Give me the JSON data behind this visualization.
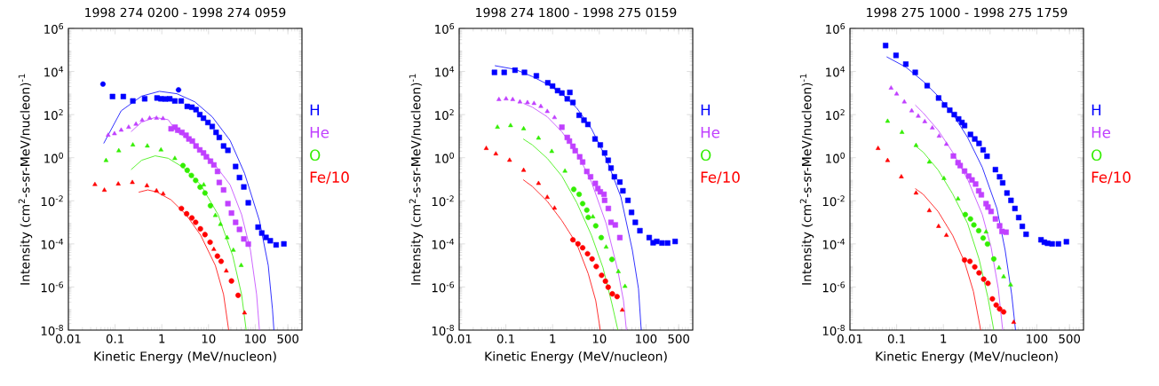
{
  "chart_data": [
    {
      "type": "scatter",
      "title": "1998 274 0200 - 1998 274 0959",
      "xlabel": "Kinetic Energy (MeV/nucleon)",
      "ylabel": "Intensity (cm$^{2}$-s-sr-MeV/nucleon)$^{-1}$",
      "log": "xy",
      "legend": "right",
      "xlim": [
        0.01,
        1000
      ],
      "ylim": [
        1e-08,
        1000000.0
      ],
      "xticks": [
        0.01,
        0.1,
        1,
        10,
        100,
        500
      ],
      "yticks": [
        {
          "value": 1e-08,
          "label": "10$^{-8}$"
        },
        {
          "value": 1e-06,
          "label": "10$^{-6}$"
        },
        {
          "value": 0.0001,
          "label": "10$^{-4}$"
        },
        {
          "value": 0.01,
          "label": "10$^{-2}$"
        },
        {
          "value": 1,
          "label": "10$^{0}$"
        },
        {
          "value": 100,
          "label": "10$^{2}$"
        },
        {
          "value": 10000.0,
          "label": "10$^{4}$"
        },
        {
          "value": 1000000.0,
          "label": "10$^{6}$"
        }
      ],
      "series": [
        {
          "name": "H",
          "marker": "square",
          "color": "#0000ff",
          "x": [
            0.088,
            0.15,
            0.24,
            0.43,
            0.79,
            0.96,
            1.19,
            1.48,
            1.9,
            2.6,
            3.5,
            4.4,
            5.4,
            6.5,
            7.8,
            9.7,
            12,
            14.5,
            17,
            21,
            26,
            38,
            46,
            57,
            71,
            115,
            138,
            170,
            210,
            280,
            410
          ],
          "values": [
            690,
            690,
            430,
            540,
            590,
            540,
            530,
            540,
            430,
            430,
            240,
            220,
            170,
            100,
            68,
            43,
            28,
            15,
            8.7,
            3.5,
            2.2,
            0.39,
            0.12,
            0.044,
            0.0081,
            0.0006,
            0.00032,
            0.0002,
            0.00014,
            9e-05,
            0.0001
          ]
        },
        {
          "marker": "circle",
          "color": "#0000ff",
          "x": [
            0.055,
            2.28
          ],
          "values": [
            2600,
            1400
          ]
        },
        {
          "type": "line",
          "color": "#0000ff",
          "x": [
            0.057,
            0.135,
            0.37,
            0.89,
            2.1,
            5.1,
            12,
            29,
            59,
            123,
            190,
            234,
            251
          ],
          "values": [
            4.6,
            150,
            720,
            1200,
            930,
            390,
            79,
            6.3,
            0.19,
            0.0012,
            1e-05,
            9.1e-08,
            1e-08
          ]
        },
        {
          "name": "He",
          "marker": "triangle",
          "color": "#c040ff",
          "x": [
            0.071,
            0.097,
            0.135,
            0.195,
            0.28,
            0.38,
            0.55,
            0.77,
            1.06
          ],
          "values": [
            11,
            13,
            19,
            26,
            36,
            55,
            68,
            68,
            66
          ]
        },
        {
          "marker": "square",
          "color": "#c040ff",
          "x": [
            1.58,
            1.92,
            2.19,
            2.7,
            3.3,
            3.8,
            4.5,
            5.4,
            6.5,
            7.8,
            9.0,
            11,
            13,
            15.6,
            17,
            21,
            26,
            31,
            38,
            46,
            57,
            71
          ],
          "values": [
            22,
            26,
            19,
            15,
            11,
            7.4,
            5.9,
            3.5,
            2.3,
            1.66,
            1.1,
            0.69,
            0.46,
            0.23,
            0.071,
            0.032,
            0.0074,
            0.0027,
            0.001,
            0.00047,
            0.00017,
            9.8e-05
          ]
        },
        {
          "type": "line",
          "color": "#c040ff",
          "x": [
            0.22,
            0.37,
            0.72,
            1.37,
            2.1,
            5.1,
            12,
            29,
            51,
            79,
            107,
            123
          ],
          "values": [
            16,
            45,
            74,
            58,
            16,
            4.6,
            0.69,
            0.055,
            0.0023,
            5.1e-05,
            4.5e-07,
            1e-08
          ]
        },
        {
          "name": "O",
          "marker": "triangle",
          "color": "#33ee00",
          "x": [
            0.064,
            0.12,
            0.24,
            0.49,
            0.96,
            1.9,
            7.9,
            14,
            18,
            25,
            34,
            50
          ],
          "values": [
            0.74,
            2.1,
            3.9,
            3.5,
            2.3,
            0.93,
            0.055,
            0.0021,
            0.00081,
            0.000196,
            5.1e-05,
            1e-05
          ]
        },
        {
          "marker": "circle",
          "color": "#33ee00",
          "x": [
            2.84,
            3.5,
            4.3,
            5.3,
            6.6,
            8.4,
            11
          ],
          "values": [
            0.43,
            0.26,
            0.15,
            0.088,
            0.043,
            0.023,
            0.0059
          ]
        },
        {
          "type": "line",
          "color": "#33ee00",
          "x": [
            0.22,
            0.37,
            0.72,
            1.37,
            2.84,
            6.8,
            16,
            33,
            51,
            64
          ],
          "values": [
            0.28,
            0.76,
            1.22,
            0.94,
            0.36,
            0.055,
            0.0023,
            2.8e-05,
            4.5e-07,
            1e-08
          ]
        },
        {
          "name": "Fe/10",
          "marker": "triangle",
          "color": "#ff0000",
          "x": [
            0.037,
            0.059,
            0.117,
            0.234,
            0.48,
            0.77,
            1.07,
            13,
            24,
            59
          ],
          "values": [
            0.057,
            0.031,
            0.06,
            0.071,
            0.05,
            0.029,
            0.021,
            5.6e-05,
            5.6e-06,
            6.3e-08
          ]
        },
        {
          "marker": "circle",
          "color": "#ff0000",
          "x": [
            2.63,
            3.4,
            4.4,
            5.3,
            6.7,
            8.4,
            10.8,
            15.5,
            18.6,
            31,
            43
          ],
          "values": [
            0.0044,
            0.0025,
            0.0016,
            0.001,
            0.0005,
            0.00027,
            0.00012,
            2.7e-05,
            1.55e-05,
            1.9e-06,
            4.1e-07
          ]
        },
        {
          "type": "line",
          "color": "#ff0000",
          "x": [
            0.32,
            0.5,
            0.77,
            1.58,
            3.3,
            6.8,
            14,
            21,
            27
          ],
          "values": [
            0.025,
            0.032,
            0.026,
            0.011,
            0.0023,
            0.00025,
            1e-05,
            4.5e-07,
            1e-08
          ]
        }
      ]
    },
    {
      "type": "scatter",
      "title": "1998 274 1800 - 1998 275 0159",
      "xlabel": "Kinetic Energy (MeV/nucleon)",
      "ylabel": "Intensity (cm$^{2}$-s-sr-MeV/nucleon)$^{-1}$",
      "log": "xy",
      "legend": "right",
      "xlim": [
        0.01,
        1000
      ],
      "ylim": [
        1e-08,
        1000000.0
      ],
      "xticks": [
        0.01,
        0.1,
        1,
        10,
        100,
        500
      ],
      "yticks": [
        {
          "value": 1e-08,
          "label": "10$^{-8}$"
        },
        {
          "value": 1e-06,
          "label": "10$^{-6}$"
        },
        {
          "value": 0.0001,
          "label": "10$^{-4}$"
        },
        {
          "value": 0.01,
          "label": "10$^{-2}$"
        },
        {
          "value": 1,
          "label": "10$^{0}$"
        },
        {
          "value": 100,
          "label": "10$^{2}$"
        },
        {
          "value": 10000.0,
          "label": "10$^{4}$"
        },
        {
          "value": 1000000.0,
          "label": "10$^{6}$"
        }
      ],
      "series": [
        {
          "name": "H",
          "marker": "square",
          "color": "#0000ff",
          "x": [
            0.057,
            0.092,
            0.157,
            0.25,
            0.45,
            0.79,
            1.0,
            1.28,
            1.58,
            2.06,
            2.34,
            2.72,
            3.7,
            4.7,
            5.7,
            8.1,
            10.5,
            13,
            15.5,
            17.8,
            21,
            27.5,
            32,
            41,
            49,
            59,
            74,
            117,
            142,
            170,
            220,
            290,
            420
          ],
          "values": [
            9100,
            9100,
            11500,
            9100,
            6300,
            3000,
            2100,
            1300,
            1000,
            540,
            1070,
            365,
            93,
            55,
            35,
            7.4,
            3.9,
            1.66,
            0.76,
            0.33,
            0.13,
            0.074,
            0.029,
            0.0105,
            0.0029,
            0.001,
            0.00041,
            0.000196,
            0.000113,
            0.00013,
            0.00011,
            0.00011,
            0.00013
          ]
        },
        {
          "type": "line",
          "color": "#0000ff",
          "x": [
            0.058,
            0.157,
            0.37,
            0.77,
            1.58,
            3.3,
            6.8,
            14,
            29,
            51,
            69,
            79
          ],
          "values": [
            18600,
            12600,
            5800,
            2600,
            930,
            200,
            22,
            0.95,
            0.015,
            5.1e-05,
            8.3e-07,
            1e-08
          ]
        },
        {
          "name": "He",
          "marker": "triangle",
          "color": "#c040ff",
          "x": [
            0.071,
            0.101,
            0.14,
            0.2,
            0.29,
            0.4,
            0.56,
            0.77,
            1.1
          ],
          "values": [
            500,
            540,
            500,
            390,
            360,
            330,
            240,
            140,
            73
          ]
        },
        {
          "marker": "square",
          "color": "#c040ff",
          "x": [
            1.58,
            2.06,
            2.29,
            2.72,
            3.05,
            3.8,
            4.4,
            5.4,
            6.5,
            8.2,
            9.3,
            10.5,
            12.6,
            13,
            15.6,
            17.8,
            22,
            27.5
          ],
          "values": [
            26,
            8.7,
            5.9,
            3.4,
            2.1,
            1.1,
            0.63,
            0.23,
            0.13,
            0.064,
            0.037,
            0.026,
            0.02,
            0.0105,
            0.0044,
            0.001,
            0.00076,
            0.000196
          ]
        },
        {
          "type": "line",
          "color": "#c040ff",
          "x": [
            0.24,
            0.37,
            0.77,
            1.58,
            3.3,
            6.8,
            14,
            25,
            33,
            38
          ],
          "values": [
            330,
            220,
            79,
            16,
            1.8,
            0.074,
            0.00089,
            5.6e-06,
            2.3e-07,
            1e-08
          ]
        },
        {
          "name": "O",
          "marker": "triangle",
          "color": "#33ee00",
          "x": [
            0.066,
            0.126,
            0.24,
            0.5,
            0.96,
            1.84,
            7.3,
            14,
            25.6,
            35.5
          ],
          "values": [
            26,
            31,
            22,
            8.1,
            1.95,
            0.24,
            0.0018,
            7.1e-05,
            5.2e-06,
            1.07e-06
          ]
        },
        {
          "marker": "circle",
          "color": "#33ee00",
          "x": [
            2.84,
            3.7,
            4.4,
            5.4,
            5.8,
            8.4,
            11,
            18.6
          ],
          "values": [
            0.034,
            0.02,
            0.0074,
            0.0037,
            0.0017,
            0.00069,
            0.000196,
            1.9e-05
          ]
        },
        {
          "type": "line",
          "color": "#33ee00",
          "x": [
            0.235,
            0.37,
            0.77,
            1.58,
            3.3,
            6.8,
            12,
            18.6,
            25
          ],
          "values": [
            7.4,
            3.9,
            0.93,
            0.14,
            0.0081,
            0.00025,
            7.8e-06,
            1.7e-07,
            1e-08
          ]
        },
        {
          "name": "Fe/10",
          "marker": "triangle",
          "color": "#ff0000",
          "x": [
            0.038,
            0.061,
            0.12,
            0.24,
            0.5,
            0.77,
            1.1,
            31
          ],
          "values": [
            2.7,
            1.5,
            0.76,
            0.26,
            0.064,
            0.0145,
            0.0046,
            8.5e-08
          ]
        },
        {
          "marker": "circle",
          "color": "#ff0000",
          "x": [
            2.72,
            3.5,
            4.4,
            5.6,
            7.0,
            8.6,
            11.2,
            13.5,
            15.5,
            19,
            24
          ],
          "values": [
            0.000155,
            0.0001,
            6.6e-05,
            3.5e-05,
            2e-05,
            8.9e-06,
            3.5e-06,
            1.86e-06,
            9.8e-07,
            4.8e-07,
            3.6e-07
          ]
        },
        {
          "type": "line",
          "color": "#ff0000",
          "x": [
            0.235,
            0.37,
            0.77,
            1.58,
            3.3,
            5.8,
            8.4,
            10.5
          ],
          "values": [
            0.095,
            0.046,
            0.0095,
            0.0012,
            9.8e-05,
            4.1e-06,
            2.3e-07,
            1e-08
          ]
        }
      ]
    },
    {
      "type": "scatter",
      "title": "1998 275 1000 - 1998 275 1759",
      "xlabel": "Kinetic Energy (MeV/nucleon)",
      "ylabel": "Intensity (cm$^{2}$-s-sr-MeV/nucleon)$^{-1}$",
      "log": "xy",
      "legend": "right",
      "xlim": [
        0.01,
        1000
      ],
      "ylim": [
        1e-08,
        1000000.0
      ],
      "xticks": [
        0.01,
        0.1,
        1,
        10,
        100,
        500
      ],
      "yticks": [
        {
          "value": 1e-08,
          "label": "10$^{-8}$"
        },
        {
          "value": 1e-06,
          "label": "10$^{-6}$"
        },
        {
          "value": 0.0001,
          "label": "10$^{-4}$"
        },
        {
          "value": 0.01,
          "label": "10$^{-2}$"
        },
        {
          "value": 1,
          "label": "10$^{0}$"
        },
        {
          "value": 100,
          "label": "10$^{2}$"
        },
        {
          "value": 10000.0,
          "label": "10$^{4}$"
        },
        {
          "value": 1000000.0,
          "label": "10$^{6}$"
        }
      ],
      "series": [
        {
          "name": "H",
          "marker": "square",
          "color": "#0000ff",
          "x": [
            0.058,
            0.097,
            0.157,
            0.25,
            0.45,
            0.79,
            1.06,
            1.37,
            1.71,
            2.12,
            2.5,
            2.84,
            3.8,
            4.7,
            5.8,
            7.1,
            8.6,
            13,
            16,
            18.6,
            23,
            28,
            34,
            41,
            49,
            59,
            123,
            145,
            170,
            213,
            290,
            430
          ],
          "values": [
            160000,
            56000,
            22000,
            9100,
            2200,
            590,
            280,
            160,
            100,
            63,
            43,
            31,
            12,
            7.4,
            4.6,
            2.3,
            1.17,
            0.28,
            0.13,
            0.068,
            0.023,
            0.0105,
            0.0044,
            0.00167,
            0.00065,
            0.00028,
            0.000155,
            0.00012,
            0.000107,
            0.0001,
            0.0001,
            0.000126
          ]
        },
        {
          "type": "line",
          "color": "#0000ff",
          "x": [
            0.061,
            0.157,
            0.37,
            0.77,
            1.58,
            3.3,
            6.8,
            14,
            21,
            29,
            35
          ],
          "values": [
            48000,
            16000,
            3500,
            720,
            110,
            8.7,
            0.36,
            0.0044,
            5.1e-05,
            4.5e-07,
            1e-08
          ]
        },
        {
          "name": "He",
          "marker": "triangle",
          "color": "#c040ff",
          "x": [
            0.076,
            0.1,
            0.146,
            0.21,
            0.29,
            0.4,
            0.58,
            0.81,
            1.16
          ],
          "values": [
            1700,
            910,
            390,
            150,
            85,
            47,
            24,
            10,
            4.2
          ]
        },
        {
          "marker": "square",
          "color": "#c040ff",
          "x": [
            1.64,
            2.06,
            2.29,
            2.84,
            3.5,
            4.1,
            4.9,
            5.7,
            6.5,
            8.2,
            9.0,
            10.5,
            13,
            16,
            18,
            20,
            22
          ],
          "values": [
            1.2,
            0.59,
            0.43,
            0.24,
            0.14,
            0.093,
            0.06,
            0.029,
            0.019,
            0.0074,
            0.0051,
            0.0032,
            0.00144,
            0.00069,
            0.00038,
            null,
            0.00035
          ]
        },
        {
          "type": "line",
          "color": "#c040ff",
          "x": [
            0.25,
            0.37,
            0.77,
            1.58,
            3.3,
            6.8,
            10.5,
            15,
            18.6
          ],
          "values": [
            280,
            120,
            19,
            1.8,
            0.1,
            0.0023,
            7.1e-05,
            8.3e-07,
            1e-08
          ]
        },
        {
          "name": "O",
          "marker": "triangle",
          "color": "#33ee00",
          "x": [
            0.064,
            0.13,
            0.26,
            0.5,
            1.03,
            2.06,
            8.2,
            15.5,
            19.5,
            27.5
          ],
          "values": [
            49,
            15,
            3.7,
            0.63,
            0.11,
            0.0123,
            0.00036,
            7.8e-06,
            3e-06,
            1.26e-06
          ]
        },
        {
          "marker": "circle",
          "color": "#33ee00",
          "x": [
            2.95,
            3.8,
            4.5,
            5.7,
            7.1,
            8.8,
            12
          ],
          "values": [
            0.0023,
            0.00144,
            0.00076,
            0.00041,
            0.000186,
            9.8e-05,
            2e-05
          ]
        },
        {
          "type": "line",
          "color": "#33ee00",
          "x": [
            0.25,
            0.37,
            0.77,
            1.58,
            3.3,
            5.8,
            9.0,
            12
          ],
          "values": [
            3.6,
            1.8,
            0.27,
            0.021,
            0.00089,
            2e-05,
            3.2e-07,
            1e-08
          ]
        },
        {
          "name": "Fe/10",
          "marker": "triangle",
          "color": "#ff0000",
          "x": [
            0.04,
            0.064,
            0.126,
            0.26,
            0.5,
            0.79,
            1.16,
            32
          ],
          "values": [
            2.7,
            0.74,
            0.13,
            0.023,
            0.0035,
            0.00065,
            0.00025,
            2.3e-08
          ]
        },
        {
          "marker": "circle",
          "color": "#ff0000",
          "x": [
            2.84,
            3.7,
            4.7,
            5.8,
            7.3,
            9.0,
            11.2,
            13.5,
            16,
            19.5
          ],
          "values": [
            1.8e-05,
            1.55e-05,
            8.5e-06,
            4.5e-06,
            2.3e-06,
            1.48e-06,
            2.8e-07,
            1.45e-07,
            9.6e-08,
            7e-08
          ]
        },
        {
          "type": "line",
          "color": "#ff0000",
          "x": [
            0.25,
            0.37,
            0.77,
            1.58,
            2.84,
            4.4,
            6.3
          ],
          "values": [
            0.037,
            0.02,
            0.0032,
            0.00025,
            1.45e-05,
            6.2e-07,
            1e-08
          ]
        }
      ]
    }
  ]
}
